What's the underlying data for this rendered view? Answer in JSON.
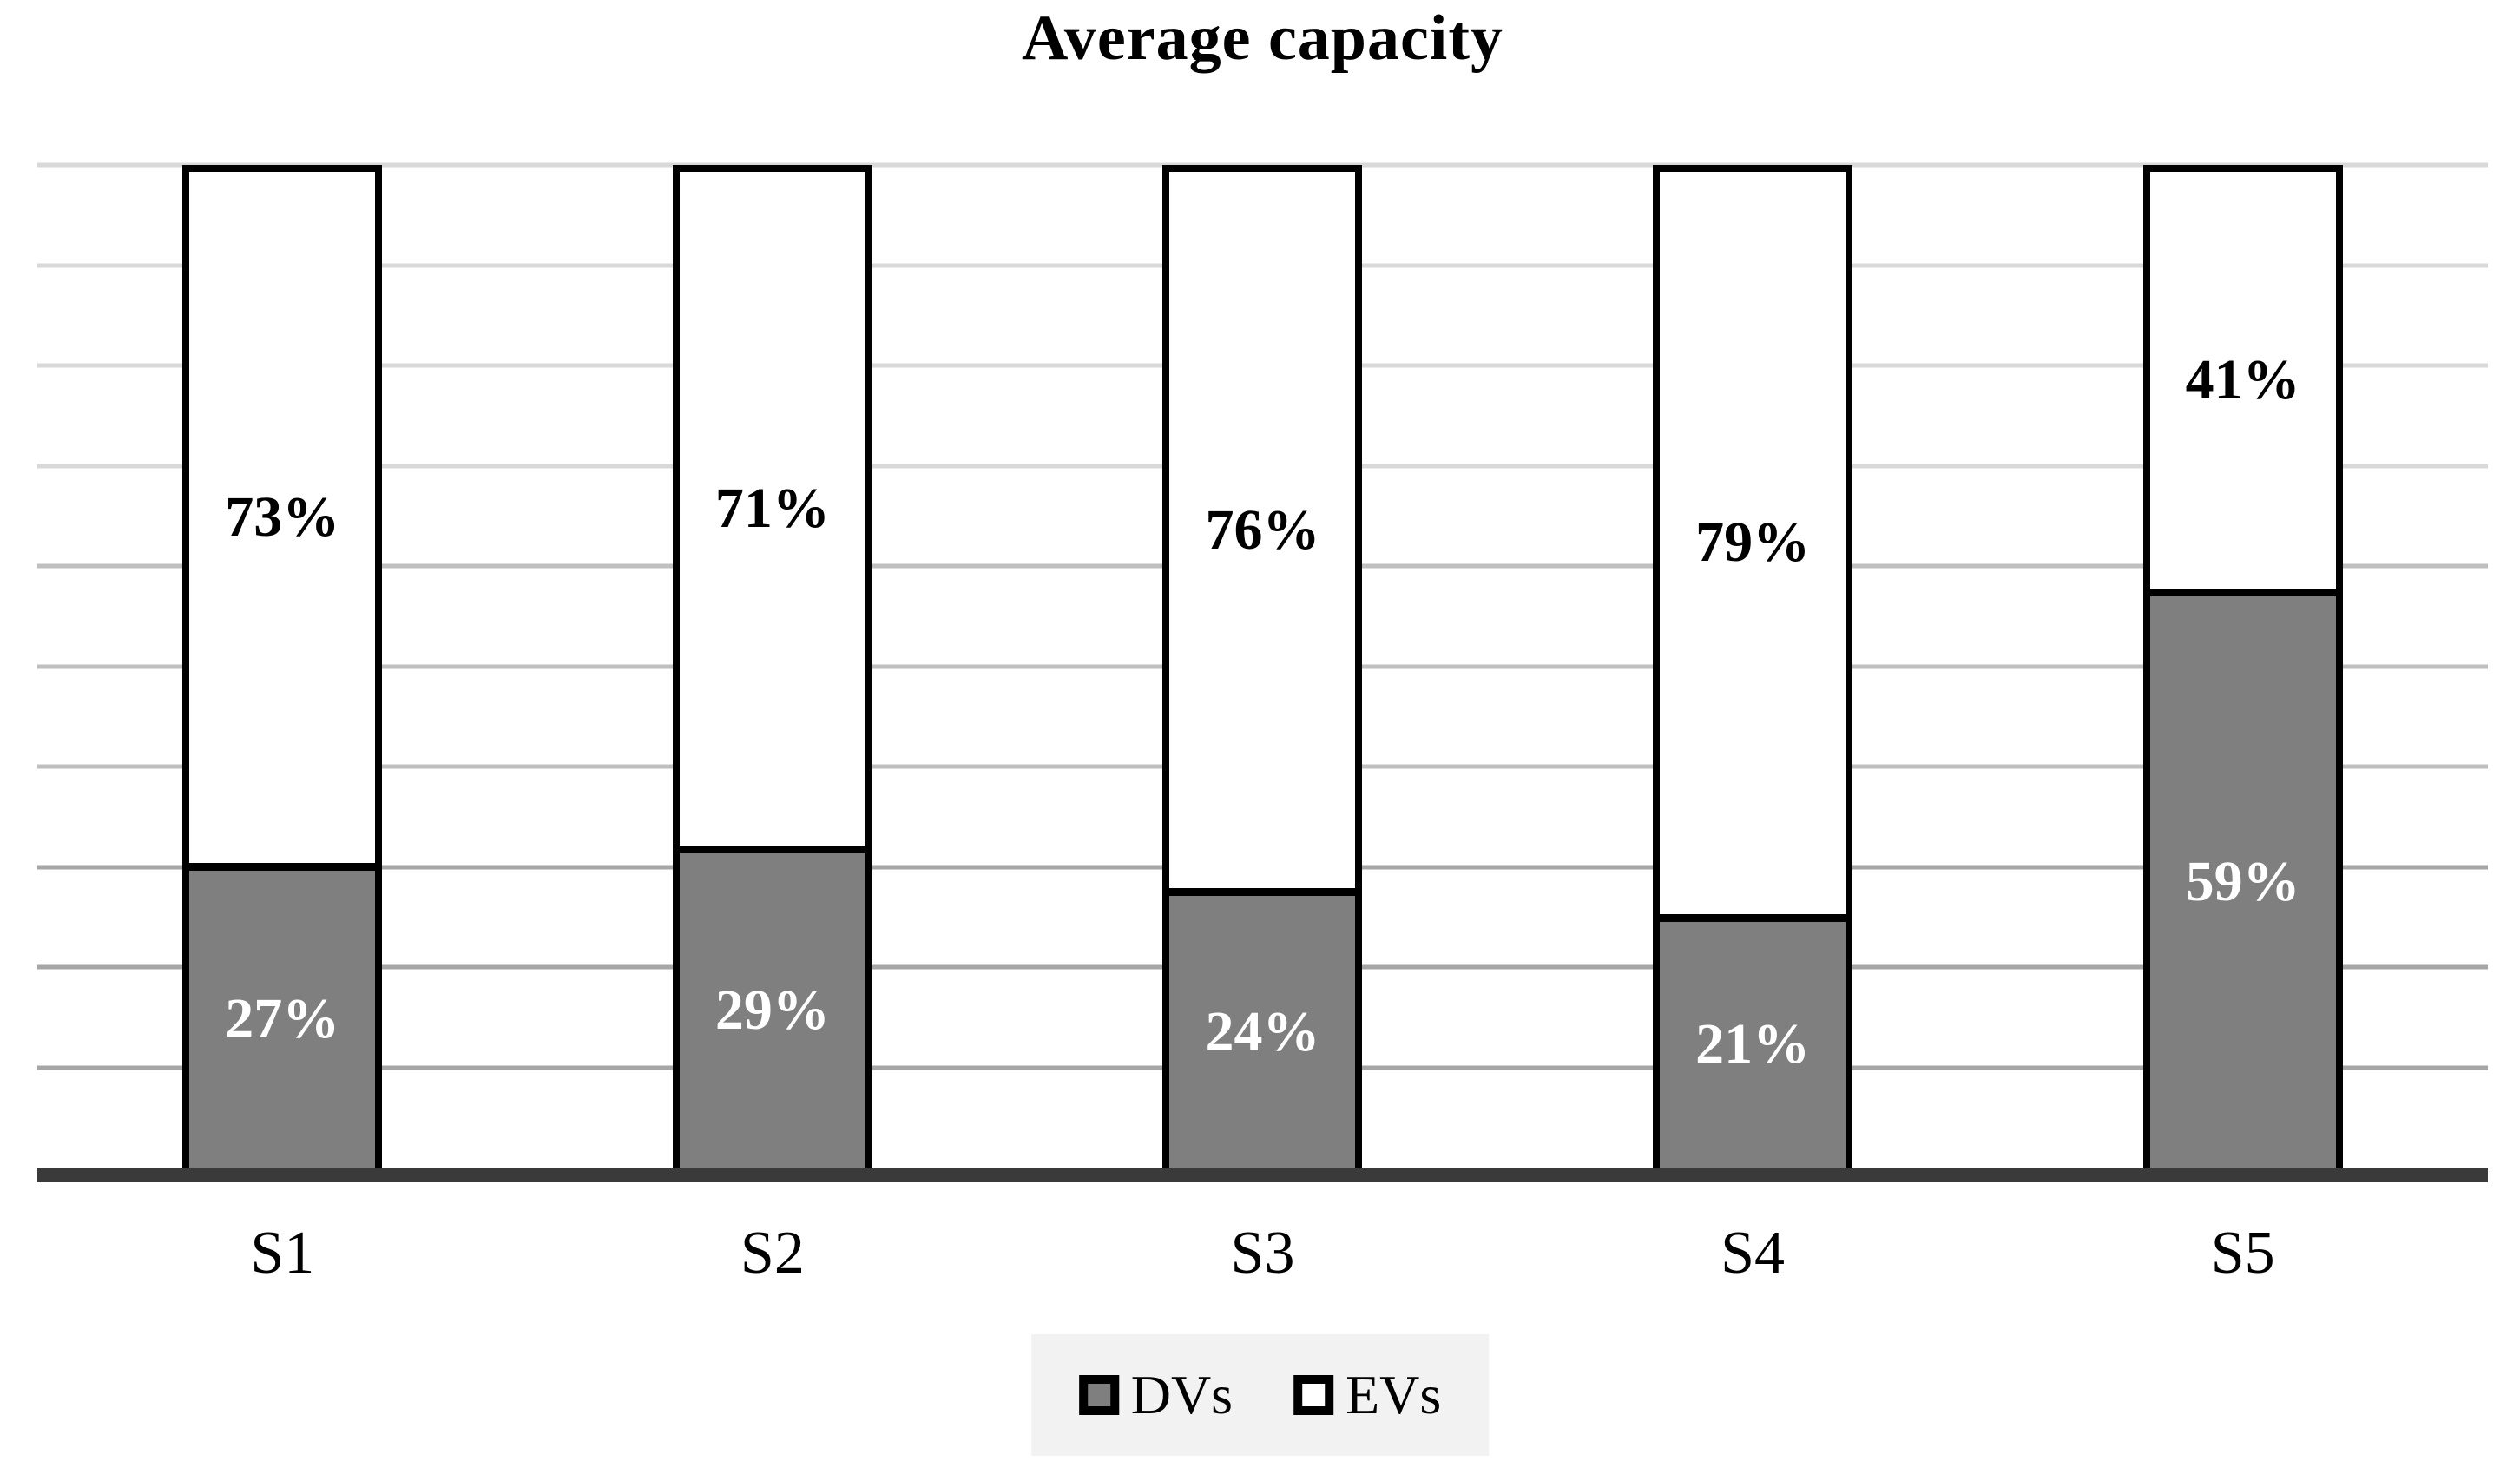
{
  "title": "Average capacity",
  "chart_data": {
    "type": "bar",
    "subtype": "stacked-100-percent-column",
    "title": "Average capacity",
    "xlabel": "",
    "ylabel": "",
    "categories": [
      "S1",
      "S2",
      "S3",
      "S4",
      "S5"
    ],
    "series": [
      {
        "name": "DVs",
        "values": [
          27,
          29,
          24,
          21,
          59
        ],
        "fill": "#7f7f7f",
        "label_color": "#ffffff"
      },
      {
        "name": "EVs",
        "values": [
          73,
          71,
          76,
          79,
          41
        ],
        "fill": "#ffffff",
        "label_color": "#000000"
      }
    ],
    "data_labels": {
      "DVs": [
        "27%",
        "29%",
        "24%",
        "21%",
        "59%"
      ],
      "EVs": [
        "73%",
        "71%",
        "76%",
        "79%",
        "41%"
      ]
    },
    "ylim": [
      0,
      100
    ],
    "grid": {
      "horizontal": true,
      "interval_percent": 10
    },
    "legend_position": "bottom"
  },
  "legend": {
    "items": [
      {
        "label": "DVs",
        "swatch_color": "#7f7f7f"
      },
      {
        "label": "EVs",
        "swatch_color": "#ffffff"
      }
    ]
  },
  "colors": {
    "dv_fill": "#7f7f7f",
    "ev_fill": "#ffffff",
    "bar_border": "#000000",
    "axis_line": "#3a3a3a",
    "gridline_light": "#d9d9d9",
    "gridline_mid": "#bfbfbf",
    "gridline_dark": "#a6a6a6",
    "legend_background": "#f2f2f2"
  }
}
